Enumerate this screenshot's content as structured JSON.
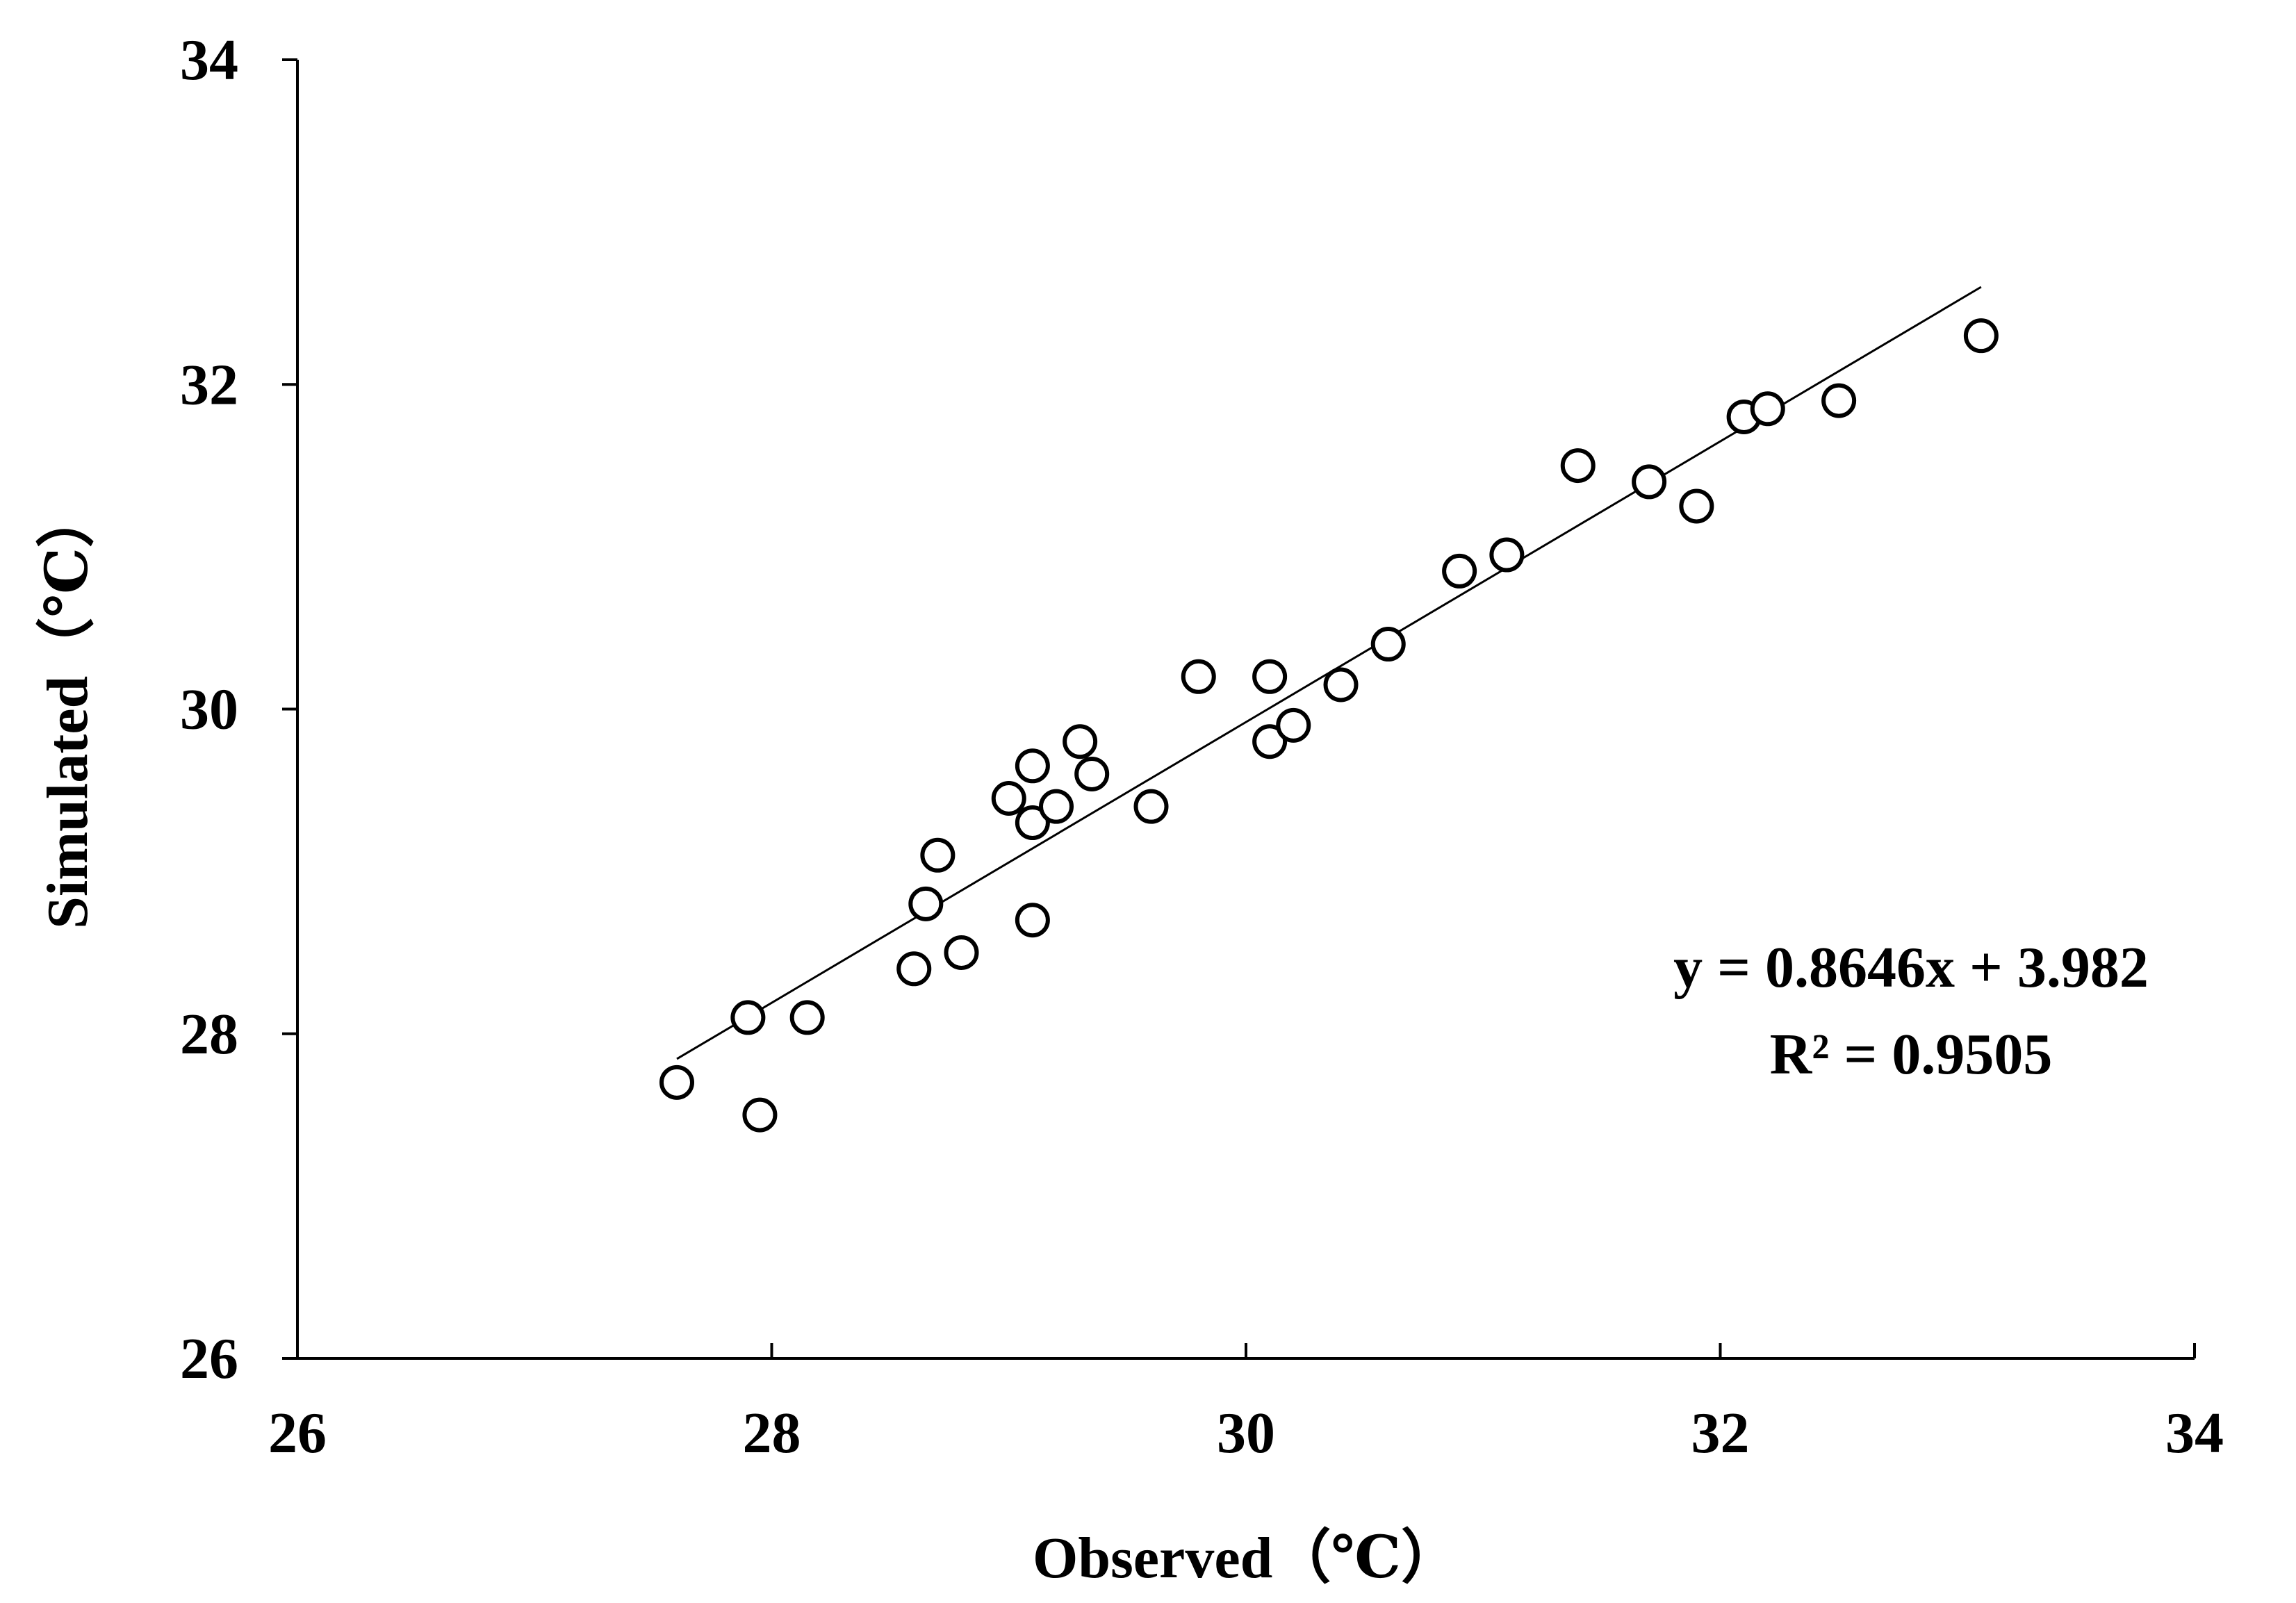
{
  "chart_data": {
    "type": "scatter",
    "title": "",
    "xlabel": "Observed（℃）",
    "ylabel": "Simulated（℃）",
    "xlim": [
      26,
      34
    ],
    "ylim": [
      26,
      34
    ],
    "x_ticks": [
      26,
      28,
      30,
      32,
      34
    ],
    "y_ticks": [
      26,
      28,
      30,
      32,
      34
    ],
    "x_tick_labels": [
      "26",
      "28",
      "30",
      "32",
      "34"
    ],
    "y_tick_labels": [
      "26",
      "28",
      "30",
      "32",
      "34"
    ],
    "grid": false,
    "legend": "none",
    "marker": "open-circle",
    "marker_color": "#000000",
    "series": [
      {
        "points": [
          {
            "x": 27.6,
            "y": 27.7
          },
          {
            "x": 27.9,
            "y": 28.1
          },
          {
            "x": 27.95,
            "y": 27.5
          },
          {
            "x": 28.15,
            "y": 28.1
          },
          {
            "x": 28.6,
            "y": 28.4
          },
          {
            "x": 28.65,
            "y": 28.8
          },
          {
            "x": 28.7,
            "y": 29.1
          },
          {
            "x": 28.8,
            "y": 28.5
          },
          {
            "x": 29.0,
            "y": 29.45
          },
          {
            "x": 29.1,
            "y": 29.65
          },
          {
            "x": 29.1,
            "y": 29.3
          },
          {
            "x": 29.1,
            "y": 28.7
          },
          {
            "x": 29.2,
            "y": 29.4
          },
          {
            "x": 29.3,
            "y": 29.8
          },
          {
            "x": 29.35,
            "y": 29.6
          },
          {
            "x": 29.6,
            "y": 29.4
          },
          {
            "x": 29.8,
            "y": 30.2
          },
          {
            "x": 30.1,
            "y": 30.2
          },
          {
            "x": 30.1,
            "y": 29.8
          },
          {
            "x": 30.2,
            "y": 29.9
          },
          {
            "x": 30.4,
            "y": 30.15
          },
          {
            "x": 30.6,
            "y": 30.4
          },
          {
            "x": 30.9,
            "y": 30.85
          },
          {
            "x": 31.1,
            "y": 30.95
          },
          {
            "x": 31.4,
            "y": 31.5
          },
          {
            "x": 31.7,
            "y": 31.4
          },
          {
            "x": 31.9,
            "y": 31.25
          },
          {
            "x": 32.1,
            "y": 31.8
          },
          {
            "x": 32.2,
            "y": 31.85
          },
          {
            "x": 32.5,
            "y": 31.9
          },
          {
            "x": 33.1,
            "y": 32.3
          }
        ]
      }
    ],
    "trendline": {
      "slope": 0.8646,
      "intercept": 3.982,
      "x_range": [
        27.6,
        33.1
      ],
      "equation": "y = 0.8646x + 3.982",
      "r_squared": "R² = 0.9505"
    }
  }
}
